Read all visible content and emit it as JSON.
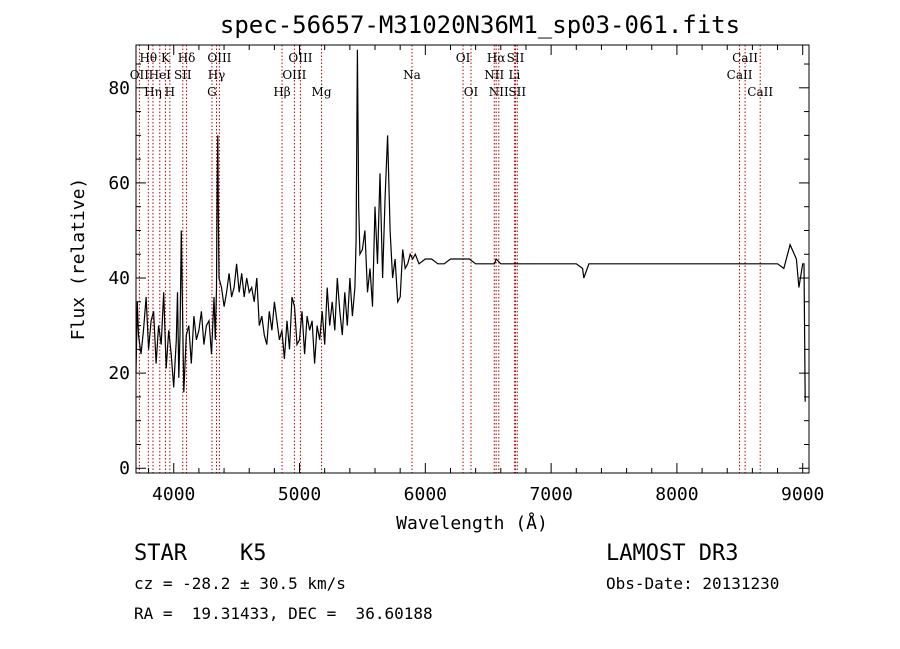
{
  "chart_data": {
    "type": "line",
    "title": "spec-56657-M31020N36M1_sp03-061.fits",
    "xlabel": "Wavelength (Å)",
    "ylabel": "Flux (relative)",
    "xlim": [
      3700,
      9050
    ],
    "ylim": [
      -1,
      89
    ],
    "xticks": [
      4000,
      5000,
      6000,
      7000,
      8000,
      9000
    ],
    "yticks": [
      0,
      20,
      40,
      60,
      80
    ],
    "series": [
      {
        "name": "flux",
        "x": [
          3700,
          3710,
          3720,
          3740,
          3760,
          3780,
          3800,
          3820,
          3840,
          3860,
          3880,
          3900,
          3920,
          3940,
          3960,
          3980,
          4000,
          4020,
          4030,
          4040,
          4050,
          4060,
          4080,
          4100,
          4120,
          4140,
          4160,
          4180,
          4200,
          4220,
          4240,
          4260,
          4280,
          4300,
          4320,
          4330,
          4340,
          4345,
          4350,
          4355,
          4360,
          4380,
          4400,
          4420,
          4440,
          4460,
          4480,
          4500,
          4520,
          4540,
          4560,
          4580,
          4600,
          4620,
          4640,
          4660,
          4680,
          4700,
          4720,
          4740,
          4760,
          4780,
          4800,
          4820,
          4840,
          4860,
          4880,
          4900,
          4920,
          4940,
          4960,
          4980,
          5000,
          5020,
          5040,
          5060,
          5080,
          5100,
          5120,
          5140,
          5160,
          5180,
          5200,
          5220,
          5240,
          5260,
          5280,
          5300,
          5320,
          5340,
          5360,
          5380,
          5400,
          5420,
          5440,
          5450,
          5460,
          5470,
          5480,
          5500,
          5520,
          5540,
          5560,
          5580,
          5600,
          5620,
          5640,
          5660,
          5680,
          5700,
          5720,
          5740,
          5760,
          5780,
          5800,
          5820,
          5840,
          5860,
          5880,
          5900,
          5920,
          5950,
          6000,
          6050,
          6100,
          6150,
          6200,
          6250,
          6300,
          6350,
          6400,
          6450,
          6500,
          6550,
          6563,
          6600,
          6650,
          6700,
          6800,
          6900,
          7000,
          7100,
          7200,
          7250,
          7260,
          7300,
          7400,
          7500,
          7600,
          7700,
          7800,
          7900,
          8000,
          8100,
          8200,
          8300,
          8400,
          8500,
          8600,
          8700,
          8800,
          8850,
          8900,
          8950,
          8970,
          9000,
          9010,
          9020
        ],
        "values": [
          20,
          35,
          28,
          24,
          29,
          36,
          25,
          31,
          33,
          22,
          30,
          26,
          37,
          21,
          29,
          24,
          17,
          27,
          37,
          19,
          28,
          50,
          16,
          28,
          30,
          22,
          32,
          27,
          29,
          33,
          26,
          30,
          31,
          24,
          36,
          27,
          38,
          58,
          70,
          52,
          40,
          38,
          34,
          37,
          41,
          36,
          38,
          43,
          37,
          41,
          36,
          40,
          37,
          38,
          35,
          40,
          30,
          32,
          28,
          26,
          33,
          29,
          35,
          31,
          27,
          29,
          23,
          31,
          25,
          36,
          34,
          26,
          27,
          33,
          24,
          32,
          29,
          31,
          22,
          30,
          27,
          33,
          26,
          38,
          30,
          35,
          29,
          40,
          33,
          28,
          37,
          30,
          40,
          32,
          38,
          48,
          88,
          55,
          45,
          46,
          50,
          37,
          42,
          34,
          55,
          43,
          62,
          40,
          57,
          70,
          50,
          40,
          44,
          35,
          36,
          46,
          42,
          43,
          45,
          44,
          45,
          43,
          44,
          44,
          43,
          43,
          44,
          44,
          44,
          44,
          43,
          43,
          43,
          43,
          44,
          43,
          43,
          43,
          43,
          43,
          43,
          43,
          43,
          42,
          40,
          43,
          43,
          43,
          43,
          43,
          43,
          43,
          43,
          43,
          43,
          43,
          43,
          43,
          43,
          43,
          43,
          42,
          47,
          44,
          38,
          43,
          43,
          14
        ]
      }
    ],
    "lines": [
      {
        "label": "Hθ",
        "w": 3798,
        "row": 0
      },
      {
        "label": "OII",
        "w": 3727,
        "row": 1
      },
      {
        "label": "Hη",
        "w": 3835,
        "row": 2
      },
      {
        "label": "HeI",
        "w": 3889,
        "row": 1
      },
      {
        "label": "K",
        "w": 3934,
        "row": 0
      },
      {
        "label": "SII",
        "w": 4072,
        "row": 1
      },
      {
        "label": "H",
        "w": 3969,
        "row": 2
      },
      {
        "label": "Hδ",
        "w": 4102,
        "row": 0
      },
      {
        "label": "OIII",
        "w": 4363,
        "row": 0
      },
      {
        "label": "Hγ",
        "w": 4340,
        "row": 1
      },
      {
        "label": "G",
        "w": 4304,
        "row": 2
      },
      {
        "label": "Hβ",
        "w": 4861,
        "row": 2
      },
      {
        "label": "OIII",
        "w": 5007,
        "row": 0
      },
      {
        "label": "OIII",
        "w": 4959,
        "row": 1
      },
      {
        "label": "Mg",
        "w": 5175,
        "row": 2
      },
      {
        "label": "Na",
        "w": 5894,
        "row": 1
      },
      {
        "label": "OI",
        "w": 6300,
        "row": 0
      },
      {
        "label": "OI",
        "w": 6363,
        "row": 2
      },
      {
        "label": "Hα",
        "w": 6563,
        "row": 0
      },
      {
        "label": "NII",
        "w": 6548,
        "row": 1
      },
      {
        "label": "NII",
        "w": 6584,
        "row": 2
      },
      {
        "label": "SII",
        "w": 6717,
        "row": 0
      },
      {
        "label": "Li",
        "w": 6708,
        "row": 1
      },
      {
        "label": "SII",
        "w": 6731,
        "row": 2
      },
      {
        "label": "CaII",
        "w": 8542,
        "row": 0
      },
      {
        "label": "CaII",
        "w": 8498,
        "row": 1
      },
      {
        "label": "CaII",
        "w": 8662,
        "row": 2
      }
    ]
  },
  "info": {
    "object_class": "STAR",
    "subclass": "K5",
    "survey": "LAMOST DR3",
    "redshift": "cz = -28.2 ± 30.5 km/s",
    "obs_date": "Obs-Date: 20131230",
    "coords": "RA =  19.31433, DEC =  36.60188"
  }
}
